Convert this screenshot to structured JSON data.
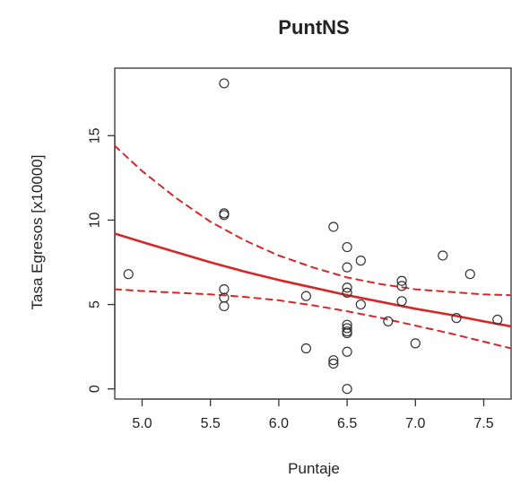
{
  "chart_data": {
    "type": "scatter",
    "title": "PuntNS",
    "xlabel": "Puntaje",
    "ylabel": "Tasa Egresos [x10000]",
    "xlim": [
      4.8,
      7.7
    ],
    "ylim": [
      -0.6,
      19.0
    ],
    "xticks": [
      5.0,
      5.5,
      6.0,
      6.5,
      7.0,
      7.5
    ],
    "xtick_labels": [
      "5.0",
      "5.5",
      "6.0",
      "6.5",
      "7.0",
      "7.5"
    ],
    "yticks": [
      0,
      5,
      10,
      15
    ],
    "ytick_labels": [
      "0",
      "5",
      "10",
      "15"
    ],
    "grid": false,
    "legend": "none",
    "colors": {
      "points": "#333333",
      "fit": "#d62728",
      "ci": "#d62728",
      "frame": "#333333"
    },
    "points": [
      {
        "x": 4.9,
        "y": 6.8
      },
      {
        "x": 5.6,
        "y": 18.1
      },
      {
        "x": 5.6,
        "y": 10.4
      },
      {
        "x": 5.6,
        "y": 10.3
      },
      {
        "x": 5.6,
        "y": 5.9
      },
      {
        "x": 5.6,
        "y": 5.4
      },
      {
        "x": 5.6,
        "y": 4.9
      },
      {
        "x": 6.2,
        "y": 5.5
      },
      {
        "x": 6.2,
        "y": 2.4
      },
      {
        "x": 6.4,
        "y": 9.6
      },
      {
        "x": 6.4,
        "y": 1.7
      },
      {
        "x": 6.4,
        "y": 1.5
      },
      {
        "x": 6.5,
        "y": 8.4
      },
      {
        "x": 6.5,
        "y": 7.2
      },
      {
        "x": 6.5,
        "y": 6.0
      },
      {
        "x": 6.5,
        "y": 5.7
      },
      {
        "x": 6.5,
        "y": 3.8
      },
      {
        "x": 6.5,
        "y": 3.6
      },
      {
        "x": 6.5,
        "y": 3.4
      },
      {
        "x": 6.5,
        "y": 3.3
      },
      {
        "x": 6.5,
        "y": 2.2
      },
      {
        "x": 6.5,
        "y": 0.0
      },
      {
        "x": 6.6,
        "y": 7.6
      },
      {
        "x": 6.6,
        "y": 5.0
      },
      {
        "x": 6.8,
        "y": 4.0
      },
      {
        "x": 6.9,
        "y": 6.4
      },
      {
        "x": 6.9,
        "y": 6.1
      },
      {
        "x": 6.9,
        "y": 5.2
      },
      {
        "x": 7.0,
        "y": 2.7
      },
      {
        "x": 7.2,
        "y": 7.9
      },
      {
        "x": 7.3,
        "y": 4.2
      },
      {
        "x": 7.4,
        "y": 6.8
      },
      {
        "x": 7.6,
        "y": 4.1
      }
    ],
    "series": [
      {
        "style": "solid",
        "x": [
          4.8,
          5.0,
          5.25,
          5.5,
          5.75,
          6.0,
          6.25,
          6.5,
          6.75,
          7.0,
          7.25,
          7.5,
          7.7
        ],
        "y": [
          9.2,
          8.7,
          8.1,
          7.5,
          6.95,
          6.45,
          6.0,
          5.55,
          5.15,
          4.75,
          4.4,
          4.0,
          3.7
        ]
      },
      {
        "style": "dashed",
        "x": [
          4.8,
          5.0,
          5.25,
          5.5,
          5.75,
          6.0,
          6.25,
          6.5,
          6.75,
          7.0,
          7.25,
          7.5,
          7.7
        ],
        "y": [
          14.4,
          12.9,
          11.3,
          9.9,
          8.8,
          7.9,
          7.2,
          6.6,
          6.2,
          5.9,
          5.75,
          5.6,
          5.55
        ]
      },
      {
        "style": "dashed",
        "x": [
          4.8,
          5.0,
          5.25,
          5.5,
          5.75,
          6.0,
          6.25,
          6.5,
          6.75,
          7.0,
          7.25,
          7.5,
          7.7
        ],
        "y": [
          5.9,
          5.8,
          5.7,
          5.6,
          5.45,
          5.25,
          4.95,
          4.6,
          4.2,
          3.75,
          3.3,
          2.8,
          2.4
        ]
      }
    ]
  }
}
